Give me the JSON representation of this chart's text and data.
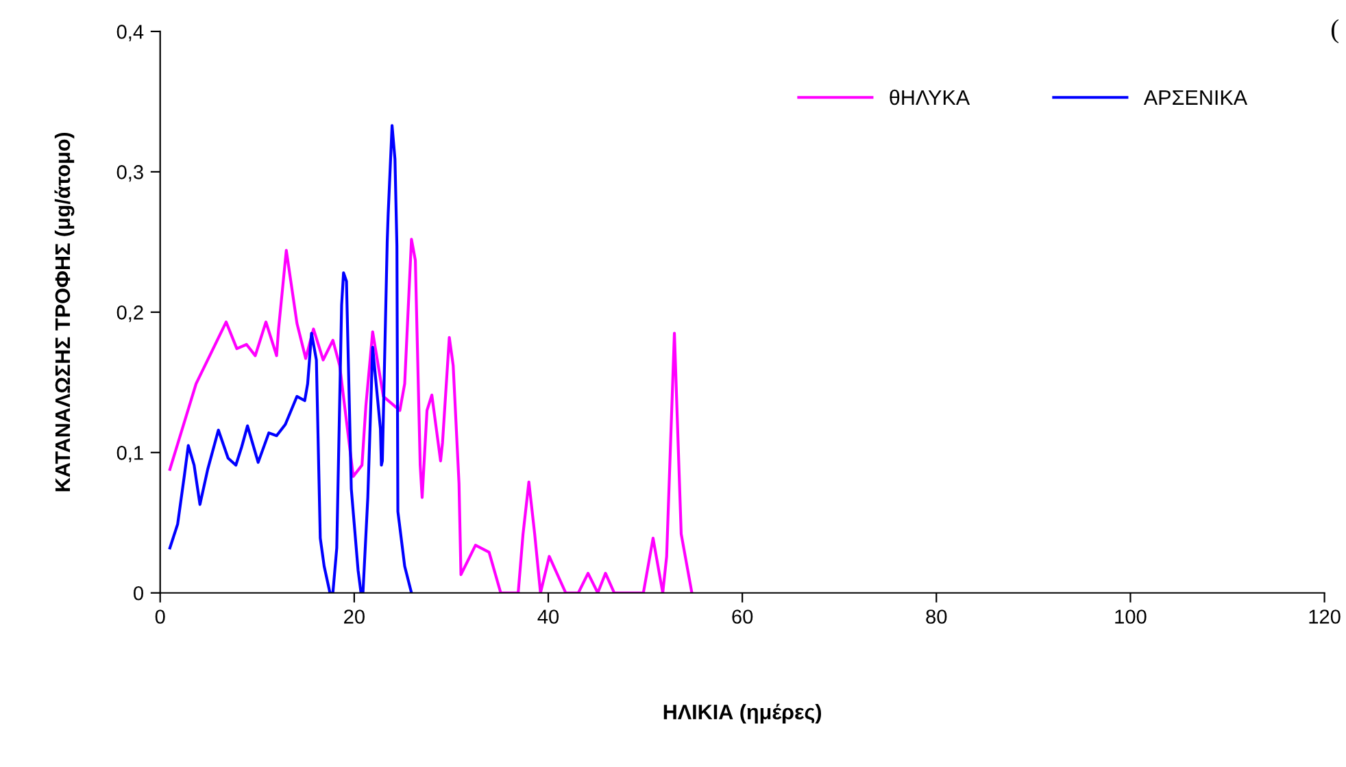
{
  "chart_data": {
    "type": "line",
    "xlabel": "ΗΛΙΚΙΑ (ημέρες)",
    "ylabel": "ΚΑΤΑΝΑΛΩΣΗΣ ΤΡΟΦΗΣ (μg/άτομο)",
    "annotations": [
      "("
    ],
    "series": [
      {
        "name": "θΗΛΥΚΑ",
        "color": "#ff00ff",
        "x": [
          1.0,
          3.7,
          6.8,
          7.9,
          8.9,
          9.8,
          10.9,
          12.0,
          12.2,
          13.0,
          14.1,
          15.0,
          15.8,
          16.8,
          17.8,
          18.5,
          19.9,
          20.8,
          21.2,
          21.9,
          23.0,
          24.7,
          25.2,
          25.9,
          26.3,
          26.8,
          27.0,
          27.5,
          28.0,
          28.9,
          29.1,
          29.8,
          30.2,
          30.8,
          31.0,
          32.5,
          33.9,
          35.1,
          36.9,
          37.4,
          38.0,
          38.6,
          39.2,
          40.1,
          41.8,
          43.1,
          44.1,
          45.1,
          45.9,
          46.8,
          49.8,
          50.8,
          51.8,
          52.2,
          53.0,
          53.7,
          54.8
        ],
        "values": [
          0.088,
          0.149,
          0.193,
          0.174,
          0.177,
          0.169,
          0.193,
          0.169,
          0.188,
          0.244,
          0.192,
          0.167,
          0.188,
          0.166,
          0.18,
          0.162,
          0.083,
          0.091,
          0.133,
          0.186,
          0.14,
          0.13,
          0.149,
          0.252,
          0.237,
          0.091,
          0.068,
          0.13,
          0.141,
          0.094,
          0.107,
          0.182,
          0.162,
          0.078,
          0.013,
          0.034,
          0.029,
          0,
          0,
          0.042,
          0.079,
          0.042,
          0,
          0.026,
          0,
          0,
          0.014,
          0,
          0.014,
          0,
          0,
          0.039,
          0,
          0.026,
          0.185,
          0.042,
          0
        ]
      },
      {
        "name": "ΑΡΣΕΝΙΚΑ",
        "color": "#0000ff",
        "x": [
          1.0,
          1.8,
          2.5,
          2.9,
          3.5,
          4.1,
          4.9,
          6.0,
          7.0,
          7.8,
          8.4,
          9.0,
          10.1,
          11.2,
          12.0,
          12.9,
          14.1,
          14.9,
          15.2,
          15.6,
          16.1,
          16.5,
          16.9,
          17.5,
          17.8,
          18.2,
          18.7,
          18.9,
          19.2,
          19.7,
          20.4,
          20.7,
          20.9,
          21.4,
          21.9,
          22.7,
          22.8,
          22.9,
          23.4,
          23.5,
          23.9,
          24.2,
          24.4,
          24.5,
          25.2,
          25.9
        ],
        "values": [
          0.032,
          0.049,
          0.084,
          0.105,
          0.091,
          0.063,
          0.088,
          0.116,
          0.096,
          0.091,
          0.104,
          0.119,
          0.093,
          0.114,
          0.112,
          0.12,
          0.14,
          0.137,
          0.149,
          0.185,
          0.166,
          0.039,
          0.019,
          0,
          0,
          0.032,
          0.205,
          0.228,
          0.222,
          0.074,
          0.016,
          0,
          0,
          0.068,
          0.175,
          0.117,
          0.091,
          0.094,
          0.25,
          0.27,
          0.333,
          0.309,
          0.247,
          0.058,
          0.019,
          0
        ]
      }
    ],
    "xlim": [
      0,
      120
    ],
    "xticks": [
      0,
      20,
      40,
      60,
      80,
      100,
      120
    ],
    "ylim": [
      0,
      0.4
    ],
    "yticks": [
      {
        "value": 0,
        "label": "0"
      },
      {
        "value": 0.1,
        "label": "0,1"
      },
      {
        "value": 0.2,
        "label": "0,2"
      },
      {
        "value": 0.3,
        "label": "0,3"
      },
      {
        "value": 0.4,
        "label": "0,4"
      }
    ],
    "legend": "top right",
    "grid": false,
    "marker": "none",
    "line_style": "solid"
  }
}
